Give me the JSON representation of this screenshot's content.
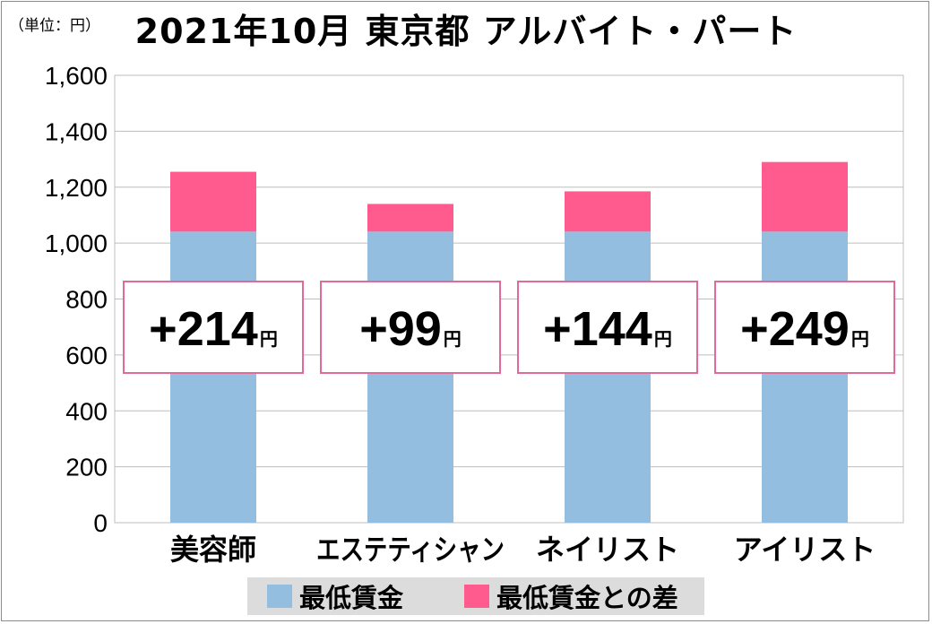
{
  "header": {
    "unit_label": "（単位：円）",
    "title": "2021年10月 東京都 アルバイト・パート"
  },
  "colors": {
    "base": "#93bedf",
    "diff": "#ff5b8e",
    "callout_border": "#e06b99",
    "grid": "#bdbdbd"
  },
  "chart_data": {
    "type": "bar",
    "stacked": true,
    "title": "2021年10月 東京都 アルバイト・パート",
    "xlabel": "",
    "ylabel": "（単位：円）",
    "ylim": [
      0,
      1600
    ],
    "yticks": [
      0,
      200,
      400,
      600,
      800,
      1000,
      1200,
      1400,
      1600
    ],
    "ytick_labels": [
      "0",
      "200",
      "400",
      "600",
      "800",
      "1,000",
      "1,200",
      "1,400",
      "1,600"
    ],
    "grid": true,
    "legend_position": "bottom",
    "categories": [
      "美容師",
      "エステティシャン",
      "ネイリスト",
      "アイリスト"
    ],
    "series": [
      {
        "name": "最低賃金",
        "values": [
          1041,
          1041,
          1041,
          1041
        ]
      },
      {
        "name": "最低賃金との差",
        "values": [
          214,
          99,
          144,
          249
        ]
      }
    ],
    "annotations": [
      {
        "prefix": "+",
        "value": "214",
        "unit": "円"
      },
      {
        "prefix": "+",
        "value": "99",
        "unit": "円"
      },
      {
        "prefix": "+",
        "value": "144",
        "unit": "円"
      },
      {
        "prefix": "+",
        "value": "249",
        "unit": "円"
      }
    ]
  }
}
